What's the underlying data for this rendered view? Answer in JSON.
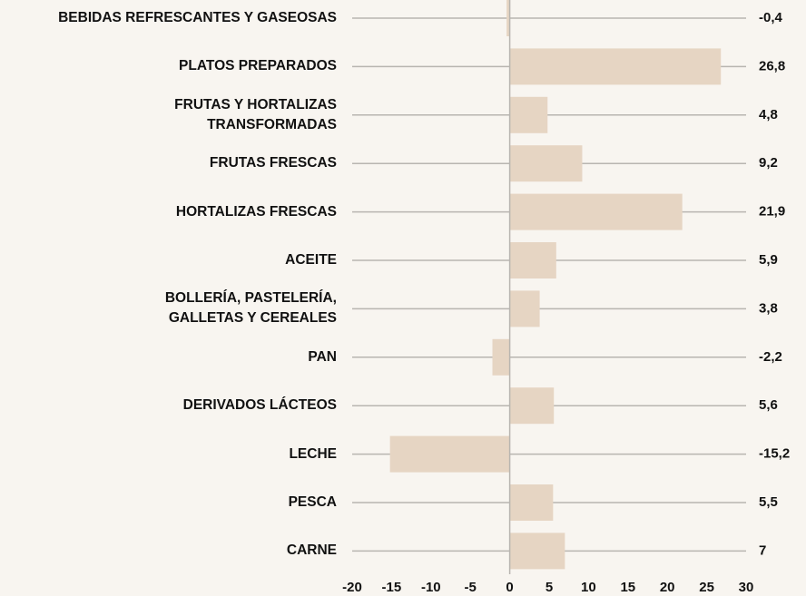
{
  "chart_data": {
    "type": "bar",
    "orientation": "horizontal",
    "categories": [
      "BEBIDAS REFRESCANTES Y GASEOSAS",
      "PLATOS PREPARADOS",
      "FRUTAS Y HORTALIZAS\nTRANSFORMADAS",
      "FRUTAS FRESCAS",
      "HORTALIZAS FRESCAS",
      "ACEITE",
      "BOLLERÍA, PASTELERÍA,\nGALLETAS Y CEREALES",
      "PAN",
      "DERIVADOS LÁCTEOS",
      "LECHE",
      "PESCA",
      "CARNE"
    ],
    "values": [
      -0.4,
      26.8,
      4.8,
      9.2,
      21.9,
      5.9,
      3.8,
      -2.2,
      5.6,
      -15.2,
      5.5,
      7
    ],
    "value_labels": [
      "-0,4",
      "26,8",
      "4,8",
      "9,2",
      "21,9",
      "5,9",
      "3,8",
      "-2,2",
      "5,6",
      "-15,2",
      "5,5",
      "7"
    ],
    "color": "#e6d5c3",
    "xlim": [
      -20,
      30
    ],
    "xticks": [
      -20,
      -15,
      -10,
      -5,
      0,
      5,
      10,
      15,
      20,
      25,
      30
    ]
  }
}
